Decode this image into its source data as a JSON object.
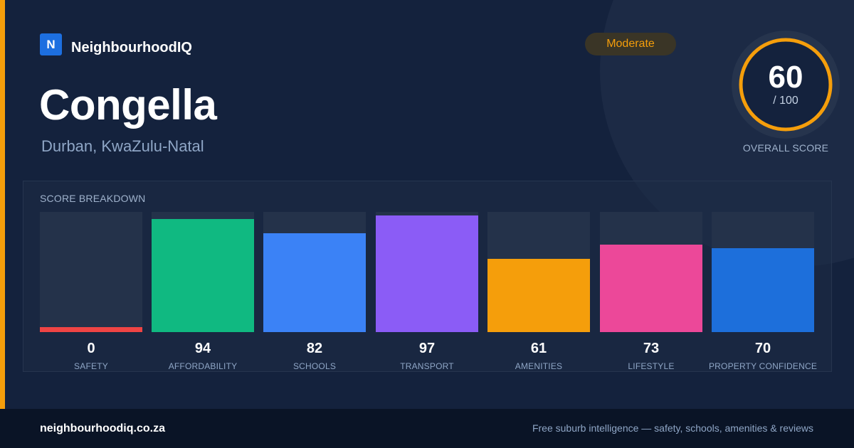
{
  "brand": {
    "logo_letter": "N",
    "name": "NeighbourhoodIQ",
    "accent_color": "#f59e0b",
    "logo_color": "#1d6fe0"
  },
  "suburb": {
    "name": "Congella",
    "location": "Durban, KwaZulu-Natal"
  },
  "rating": {
    "label": "Moderate",
    "color": "#f59e0b"
  },
  "overall": {
    "value": "60",
    "max_label": "/ 100",
    "max": 100,
    "label": "OVERALL SCORE",
    "ring_color": "#f59e0b"
  },
  "breakdown": {
    "title": "SCORE BREAKDOWN",
    "items": [
      {
        "label": "SAFETY",
        "value": "0",
        "bar_fraction": 0.04,
        "color": "#ef4444"
      },
      {
        "label": "AFFORDABILITY",
        "value": "94",
        "bar_fraction": 0.94,
        "color": "#10b981"
      },
      {
        "label": "SCHOOLS",
        "value": "82",
        "bar_fraction": 0.82,
        "color": "#3b82f6"
      },
      {
        "label": "TRANSPORT",
        "value": "97",
        "bar_fraction": 0.97,
        "color": "#8b5cf6"
      },
      {
        "label": "AMENITIES",
        "value": "61",
        "bar_fraction": 0.61,
        "color": "#f59e0b"
      },
      {
        "label": "LIFESTYLE",
        "value": "73",
        "bar_fraction": 0.73,
        "color": "#ec4899"
      },
      {
        "label": "PROPERTY CONFIDENCE",
        "value": "70",
        "bar_fraction": 0.7,
        "color": "#1d6fdb"
      }
    ]
  },
  "footer": {
    "domain": "neighbourhoodiq.co.za",
    "tagline": "Free suburb intelligence — safety, schools, amenities & reviews"
  }
}
